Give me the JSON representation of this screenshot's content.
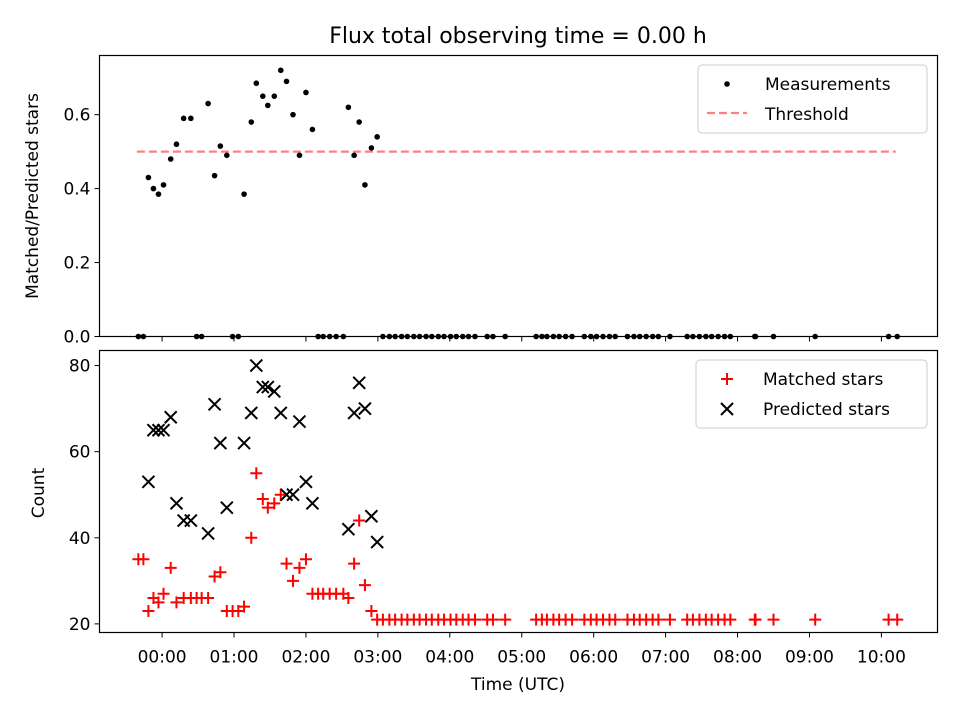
{
  "chart_data": [
    {
      "type": "scatter",
      "title": "Flux total observing time = 0.00 h",
      "xlabel": "",
      "ylabel": "Matched/Predicted stars",
      "xlim_hours": [
        -0.87,
        10.78
      ],
      "ylim": [
        0,
        0.76
      ],
      "yticks": [
        0.0,
        0.2,
        0.4,
        0.6
      ],
      "ytick_labels": [
        "0.0",
        "0.2",
        "0.4",
        "0.6"
      ],
      "legend_position": "top-right",
      "legend": [
        "Measurements",
        "Threshold"
      ],
      "colors": {
        "measurements": "#000000",
        "threshold": "#ff7f7f"
      },
      "threshold": {
        "value": 0.5,
        "x_start_hours": -0.35,
        "x_end_hours": 10.2
      },
      "x_hours": [
        -0.33,
        -0.26,
        -0.19,
        -0.12,
        -0.05,
        0.02,
        0.12,
        0.2,
        0.3,
        0.4,
        0.48,
        0.55,
        0.64,
        0.73,
        0.81,
        0.9,
        0.98,
        1.06,
        1.14,
        1.24,
        1.31,
        1.4,
        1.47,
        1.56,
        1.65,
        1.73,
        1.82,
        1.91,
        2.0,
        2.09,
        2.17,
        2.24,
        2.33,
        2.42,
        2.52,
        2.59,
        2.67,
        2.74,
        2.82,
        2.91,
        2.99,
        3.07,
        3.16,
        3.24,
        3.33,
        3.41,
        3.5,
        3.58,
        3.67,
        3.75,
        3.84,
        3.92,
        4.01,
        4.09,
        4.18,
        4.26,
        4.35,
        4.52,
        4.6,
        4.77,
        5.2,
        5.28,
        5.35,
        5.44,
        5.52,
        5.61,
        5.7,
        5.87,
        5.96,
        6.04,
        6.13,
        6.22,
        6.3,
        6.47,
        6.56,
        6.64,
        6.73,
        6.82,
        6.9,
        7.06,
        7.3,
        7.38,
        7.47,
        7.56,
        7.64,
        7.73,
        7.82,
        7.9,
        8.24,
        8.25,
        8.5,
        9.08,
        10.1,
        10.22
      ],
      "y_ratio": [
        0,
        0,
        0.43,
        0.4,
        0.385,
        0.41,
        0.48,
        0.52,
        0.59,
        0.59,
        0,
        0,
        0.63,
        0.435,
        0.515,
        0.49,
        0,
        0,
        0.385,
        0.58,
        0.685,
        0.65,
        0.625,
        0.65,
        0.72,
        0.69,
        0.6,
        0.49,
        0.66,
        0.56,
        0,
        0,
        0,
        0,
        0,
        0.62,
        0.49,
        0.58,
        0.41,
        0.51,
        0.54,
        0,
        0,
        0,
        0,
        0,
        0,
        0,
        0,
        0,
        0,
        0,
        0,
        0,
        0,
        0,
        0,
        0,
        0,
        0,
        0,
        0,
        0,
        0,
        0,
        0,
        0,
        0,
        0,
        0,
        0,
        0,
        0,
        0,
        0,
        0,
        0,
        0,
        0,
        0,
        0,
        0,
        0,
        0,
        0,
        0,
        0,
        0,
        0,
        0,
        0,
        0,
        0,
        0
      ]
    },
    {
      "type": "scatter",
      "title": "",
      "xlabel": "Time (UTC)",
      "ylabel": "Count",
      "xlim_hours": [
        -0.87,
        10.78
      ],
      "ylim": [
        18,
        83.5
      ],
      "yticks": [
        20,
        40,
        60,
        80
      ],
      "ytick_labels": [
        "20",
        "40",
        "60",
        "80"
      ],
      "xticks_hours": [
        0,
        1,
        2,
        3,
        4,
        5,
        6,
        7,
        8,
        9,
        10
      ],
      "xtick_labels": [
        "00:00",
        "01:00",
        "02:00",
        "03:00",
        "04:00",
        "05:00",
        "06:00",
        "07:00",
        "08:00",
        "09:00",
        "10:00"
      ],
      "legend_position": "top-right",
      "legend": [
        "Matched stars",
        "Predicted stars"
      ],
      "colors": {
        "matched": "#ff0000",
        "predicted": "#000000"
      },
      "matched": {
        "x_hours": [
          -0.33,
          -0.26,
          -0.19,
          -0.12,
          -0.05,
          0.02,
          0.12,
          0.2,
          0.3,
          0.4,
          0.48,
          0.55,
          0.64,
          0.73,
          0.81,
          0.9,
          0.98,
          1.06,
          1.14,
          1.24,
          1.31,
          1.4,
          1.47,
          1.56,
          1.65,
          1.73,
          1.82,
          1.91,
          2.0,
          2.09,
          2.17,
          2.24,
          2.33,
          2.42,
          2.52,
          2.59,
          2.67,
          2.74,
          2.82,
          2.91,
          2.99,
          3.07,
          3.16,
          3.24,
          3.33,
          3.41,
          3.5,
          3.58,
          3.67,
          3.75,
          3.84,
          3.92,
          4.01,
          4.09,
          4.18,
          4.26,
          4.35,
          4.52,
          4.6,
          4.77,
          5.2,
          5.28,
          5.35,
          5.44,
          5.52,
          5.61,
          5.7,
          5.87,
          5.96,
          6.04,
          6.13,
          6.22,
          6.3,
          6.47,
          6.56,
          6.64,
          6.73,
          6.82,
          6.9,
          7.06,
          7.3,
          7.38,
          7.47,
          7.56,
          7.64,
          7.73,
          7.82,
          7.9,
          8.24,
          8.25,
          8.5,
          9.08,
          10.1,
          10.22
        ],
        "y": [
          35,
          35,
          23,
          26,
          25,
          27,
          33,
          25,
          26,
          26,
          26,
          26,
          26,
          31,
          32,
          23,
          23,
          23,
          24,
          40,
          55,
          49,
          47,
          48,
          50,
          34,
          30,
          33,
          35,
          27,
          27,
          27,
          27,
          27,
          27,
          26,
          34,
          44,
          29,
          23,
          21,
          21,
          21,
          21,
          21,
          21,
          21,
          21,
          21,
          21,
          21,
          21,
          21,
          21,
          21,
          21,
          21,
          21,
          21,
          21,
          21,
          21,
          21,
          21,
          21,
          21,
          21,
          21,
          21,
          21,
          21,
          21,
          21,
          21,
          21,
          21,
          21,
          21,
          21,
          21,
          21,
          21,
          21,
          21,
          21,
          21,
          21,
          21,
          21,
          21,
          21,
          21,
          21,
          21
        ]
      },
      "predicted": {
        "x_hours": [
          -0.19,
          -0.12,
          -0.05,
          0.02,
          0.12,
          0.2,
          0.3,
          0.4,
          0.64,
          0.73,
          0.81,
          0.9,
          1.14,
          1.24,
          1.31,
          1.4,
          1.47,
          1.56,
          1.65,
          1.73,
          1.82,
          1.91,
          2.0,
          2.09,
          2.59,
          2.67,
          2.74,
          2.82,
          2.91,
          2.99
        ],
        "y": [
          53,
          65,
          65,
          65,
          68,
          48,
          44,
          44,
          41,
          71,
          62,
          47,
          62,
          69,
          80,
          75,
          75,
          74,
          69,
          50,
          50,
          67,
          53,
          48,
          42,
          69,
          76,
          70,
          45,
          39
        ]
      }
    }
  ]
}
